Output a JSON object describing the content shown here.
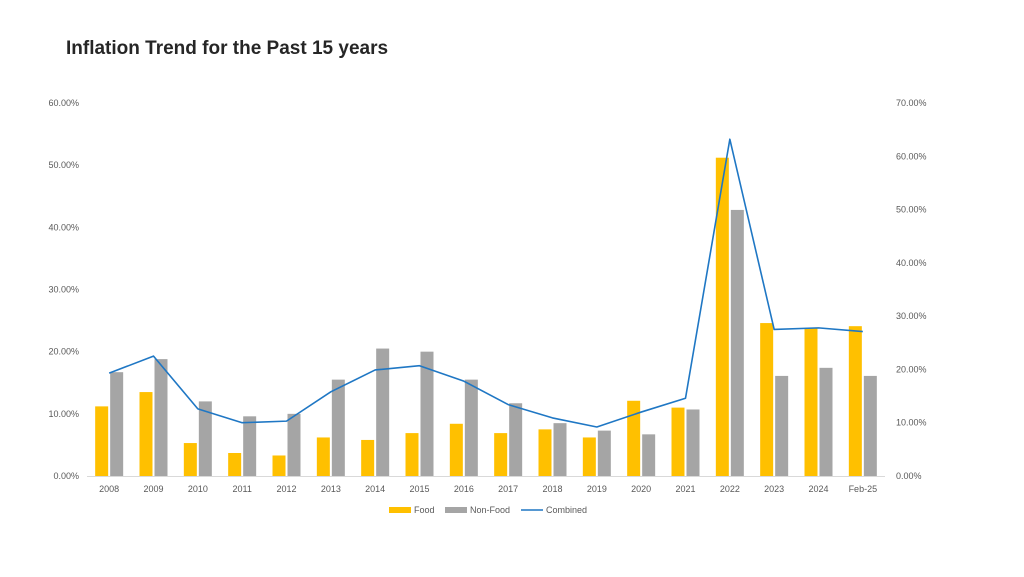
{
  "chart_data": {
    "type": "bar",
    "title": "Inflation Trend for the Past 15 years",
    "categories": [
      "2008",
      "2009",
      "2010",
      "2011",
      "2012",
      "2013",
      "2014",
      "2015",
      "2016",
      "2017",
      "2018",
      "2019",
      "2020",
      "2021",
      "2022",
      "2023",
      "2024",
      "Feb-25"
    ],
    "series": [
      {
        "name": "Food",
        "type": "bar",
        "axis": "left",
        "color": "#FFC000",
        "values": [
          11.2,
          13.5,
          5.3,
          3.7,
          3.3,
          6.2,
          5.8,
          6.9,
          8.4,
          6.9,
          7.5,
          6.2,
          12.1,
          11.0,
          51.2,
          24.6,
          23.8,
          24.1
        ]
      },
      {
        "name": "Non-Food",
        "type": "bar",
        "axis": "left",
        "color": "#A5A5A5",
        "values": [
          16.7,
          18.8,
          12.0,
          9.6,
          10.0,
          15.5,
          20.5,
          20.0,
          15.5,
          11.7,
          8.5,
          7.3,
          6.7,
          10.7,
          42.8,
          16.1,
          17.4,
          16.1
        ]
      },
      {
        "name": "Combined",
        "type": "line",
        "axis": "right",
        "color": "#1F77C4",
        "values": [
          19.3,
          22.5,
          12.6,
          10.0,
          10.3,
          15.8,
          19.9,
          20.7,
          17.8,
          13.4,
          10.9,
          9.2,
          12.0,
          14.6,
          63.2,
          27.5,
          27.8,
          27.1
        ]
      }
    ],
    "y_left": {
      "ylim": [
        0,
        60
      ],
      "ticks": [
        0,
        10,
        20,
        30,
        40,
        50,
        60
      ],
      "tick_labels": [
        "0.00%",
        "10.00%",
        "20.00%",
        "30.00%",
        "40.00%",
        "50.00%",
        "60.00%"
      ]
    },
    "y_right": {
      "ylim": [
        0,
        70
      ],
      "ticks": [
        0,
        10,
        20,
        30,
        40,
        50,
        60,
        70
      ],
      "tick_labels": [
        "0.00%",
        "10.00%",
        "20.00%",
        "30.00%",
        "40.00%",
        "50.00%",
        "60.00%",
        "70.00%"
      ]
    },
    "legend_position": "bottom-center",
    "grid": false
  }
}
